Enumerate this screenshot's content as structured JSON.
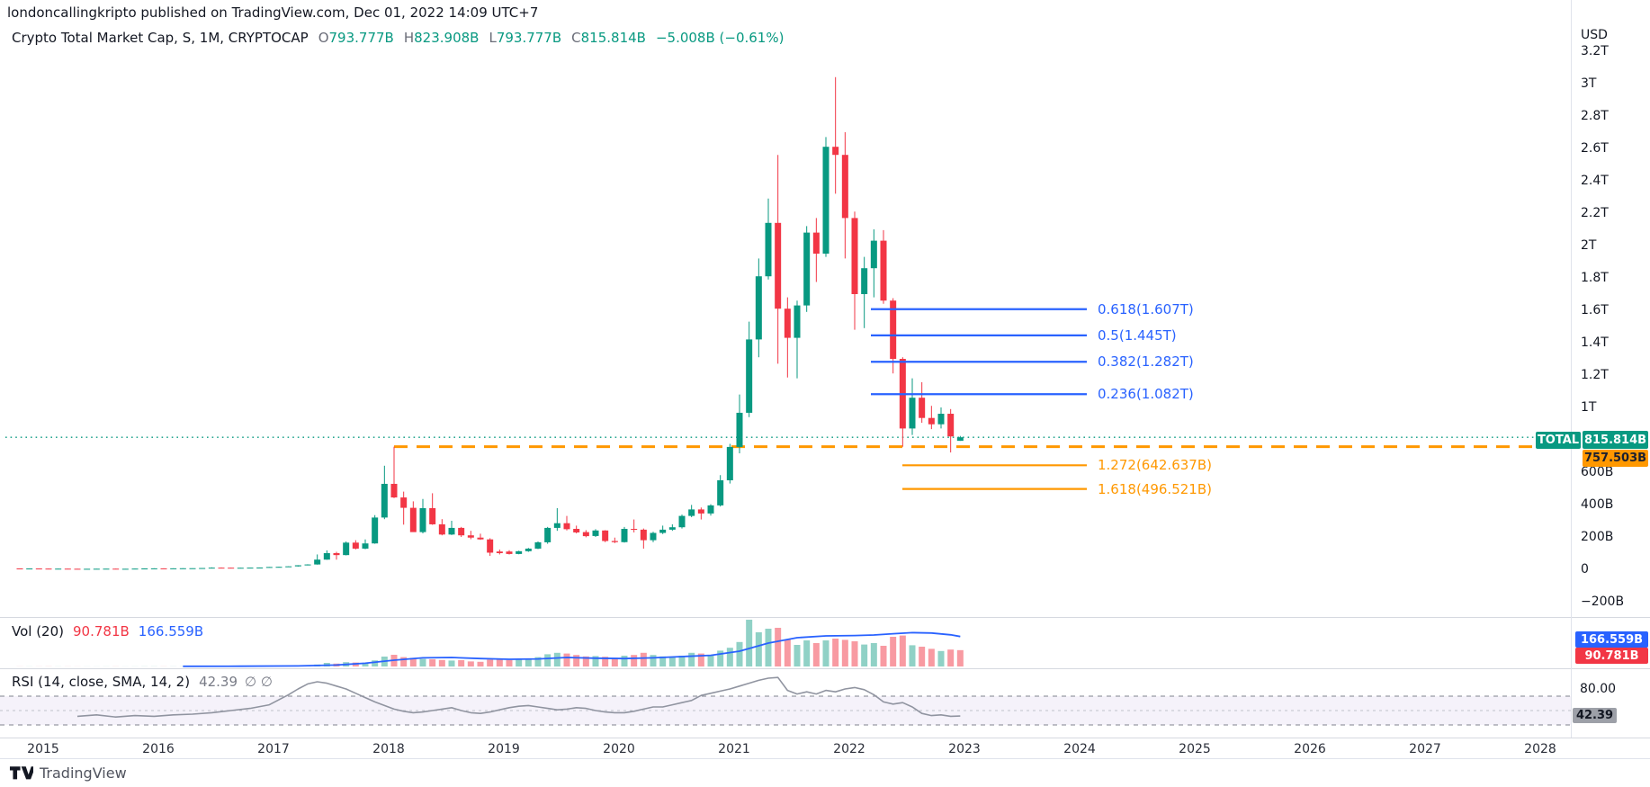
{
  "header": {
    "publish_line": "londoncallingkripto published on TradingView.com, Dec 01, 2022 14:09 UTC+7"
  },
  "legend": {
    "title": "Crypto Total Market Cap, S, 1M, CRYPTOCAP",
    "o_label": "O",
    "o": "793.777B",
    "h_label": "H",
    "h": "823.908B",
    "l_label": "L",
    "l": "793.777B",
    "c_label": "C",
    "c": "815.814B",
    "change": "−5.008B (−0.61%)"
  },
  "volume_row": {
    "label": "Vol (20)",
    "current": "90.781B",
    "ma": "166.559B"
  },
  "rsi_row": {
    "label": "RSI (14, close, SMA, 14, 2)",
    "value": "42.39",
    "hidden_values": "∅ ∅"
  },
  "footer": {
    "brand": "TradingView"
  },
  "axis": {
    "currency": "USD",
    "price_ticks": [
      {
        "label": "3.2T",
        "value": 3200
      },
      {
        "label": "3T",
        "value": 3000
      },
      {
        "label": "2.8T",
        "value": 2800
      },
      {
        "label": "2.6T",
        "value": 2600
      },
      {
        "label": "2.4T",
        "value": 2400
      },
      {
        "label": "2.2T",
        "value": 2200
      },
      {
        "label": "2T",
        "value": 2000
      },
      {
        "label": "1.8T",
        "value": 1800
      },
      {
        "label": "1.6T",
        "value": 1600
      },
      {
        "label": "1.4T",
        "value": 1400
      },
      {
        "label": "1.2T",
        "value": 1200
      },
      {
        "label": "1T",
        "value": 1000
      },
      {
        "label": "600B",
        "value": 600
      },
      {
        "label": "400B",
        "value": 400
      },
      {
        "label": "200B",
        "value": 200
      },
      {
        "label": "0",
        "value": 0
      },
      {
        "label": "−200B",
        "value": -200
      }
    ],
    "badge_total": "TOTAL",
    "badge_price": "815.814B",
    "badge_hline": "757.503B",
    "badge_vol_ma": "166.559B",
    "badge_vol": "90.781B",
    "badge_rsi": "42.39",
    "rsi_tick_label": "80.00",
    "years": [
      "2015",
      "2016",
      "2017",
      "2018",
      "2019",
      "2020",
      "2021",
      "2022",
      "2023",
      "2024",
      "2025",
      "2026",
      "2027",
      "2028"
    ]
  },
  "colors": {
    "up": "#089981",
    "down": "#f23645",
    "vol_up": "rgba(8,153,129,0.45)",
    "vol_down": "rgba(242,54,69,0.5)",
    "fib_blue": "#2962ff",
    "fib_orange": "#ff9800",
    "rsi_line": "#9094a0",
    "rsi_band": "rgba(126,87,194,0.08)",
    "ma_line": "#2962ff",
    "separator": "#d6d9e0"
  },
  "chart_data": {
    "type": "candlestick",
    "title": "Crypto Total Market Cap, S, 1M, CRYPTOCAP",
    "timeframe": "1M",
    "start_month": "2014-10",
    "units": "billions USD",
    "current_price": 815.814,
    "horizontal_line_value": 757.503,
    "price_axis_range": [
      -294,
      3361
    ],
    "grid": false,
    "months_ohlcv": [
      [
        5.6,
        5.8,
        4.8,
        5.0,
        0.4
      ],
      [
        5.0,
        5.6,
        4.4,
        5.3,
        0.4
      ],
      [
        5.3,
        5.5,
        4.2,
        4.6,
        0.4
      ],
      [
        4.6,
        4.7,
        2.9,
        3.9,
        0.6
      ],
      [
        3.9,
        4.4,
        3.3,
        4.3,
        0.4
      ],
      [
        4.3,
        4.4,
        3.4,
        3.6,
        0.4
      ],
      [
        3.6,
        3.7,
        3.1,
        3.3,
        0.3
      ],
      [
        3.3,
        3.5,
        3.2,
        3.4,
        0.3
      ],
      [
        3.4,
        3.9,
        3.3,
        3.8,
        0.3
      ],
      [
        3.8,
        4.4,
        3.7,
        4.1,
        0.4
      ],
      [
        4.1,
        4.2,
        2.9,
        3.4,
        0.5
      ],
      [
        3.4,
        3.6,
        3.2,
        3.5,
        0.3
      ],
      [
        3.5,
        4.7,
        3.4,
        4.6,
        0.4
      ],
      [
        4.6,
        5.9,
        4.5,
        5.5,
        0.6
      ],
      [
        5.5,
        6.5,
        5.3,
        6.1,
        0.6
      ],
      [
        6.1,
        6.3,
        5.2,
        5.6,
        0.5
      ],
      [
        5.6,
        6.4,
        5.4,
        6.3,
        0.5
      ],
      [
        6.3,
        7.1,
        5.9,
        6.7,
        0.6
      ],
      [
        6.7,
        7.2,
        6.3,
        7.0,
        0.6
      ],
      [
        7.0,
        8.2,
        6.8,
        8.1,
        0.7
      ],
      [
        8.1,
        12.2,
        7.9,
        10.3,
        1.4
      ],
      [
        10.3,
        12.1,
        9.4,
        10.1,
        1.2
      ],
      [
        10.1,
        10.6,
        8.9,
        9.2,
        0.9
      ],
      [
        9.2,
        9.9,
        8.9,
        9.7,
        0.8
      ],
      [
        9.7,
        10.6,
        9.4,
        10.5,
        0.8
      ],
      [
        10.5,
        11.4,
        9.9,
        11.2,
        0.9
      ],
      [
        11.2,
        14.6,
        10.9,
        14.5,
        1.2
      ],
      [
        14.5,
        15.8,
        11.8,
        15.5,
        2
      ],
      [
        15.5,
        18.6,
        14.9,
        18.5,
        2
      ],
      [
        18.5,
        25.6,
        17.3,
        25,
        3.2
      ],
      [
        25,
        31,
        24,
        30,
        4
      ],
      [
        30,
        92,
        29,
        60,
        11
      ],
      [
        60,
        117,
        59,
        100,
        20
      ],
      [
        100,
        108,
        60,
        88,
        16
      ],
      [
        88,
        172,
        86,
        165,
        24
      ],
      [
        165,
        180,
        123,
        128,
        22
      ],
      [
        128,
        185,
        124,
        160,
        20
      ],
      [
        160,
        335,
        158,
        320,
        34
      ],
      [
        320,
        640,
        310,
        528,
        55
      ],
      [
        528,
        757.5,
        440,
        444,
        65
      ],
      [
        444,
        480,
        276,
        380,
        52
      ],
      [
        380,
        420,
        248,
        230,
        48
      ],
      [
        230,
        435,
        222,
        378,
        42
      ],
      [
        378,
        470,
        275,
        278,
        40
      ],
      [
        278,
        310,
        210,
        215,
        36
      ],
      [
        215,
        300,
        212,
        256,
        33
      ],
      [
        256,
        262,
        200,
        210,
        35
      ],
      [
        210,
        238,
        186,
        196,
        28
      ],
      [
        196,
        220,
        182,
        185,
        26
      ],
      [
        185,
        192,
        83,
        103,
        38
      ],
      [
        110,
        122,
        92,
        100,
        40
      ],
      [
        110,
        118,
        92,
        95,
        36
      ],
      [
        95,
        115,
        93,
        112,
        38
      ],
      [
        112,
        132,
        108,
        128,
        44
      ],
      [
        128,
        172,
        125,
        167,
        52
      ],
      [
        167,
        262,
        158,
        256,
        68
      ],
      [
        256,
        378,
        238,
        285,
        76
      ],
      [
        285,
        330,
        240,
        248,
        72
      ],
      [
        250,
        270,
        222,
        228,
        64
      ],
      [
        230,
        242,
        198,
        205,
        56
      ],
      [
        206,
        248,
        200,
        240,
        58
      ],
      [
        240,
        242,
        168,
        175,
        54
      ],
      [
        175,
        196,
        162,
        168,
        48
      ],
      [
        168,
        262,
        165,
        250,
        60
      ],
      [
        250,
        308,
        228,
        245,
        64
      ],
      [
        245,
        252,
        128,
        180,
        76
      ],
      [
        180,
        232,
        168,
        225,
        64
      ],
      [
        225,
        270,
        218,
        245,
        56
      ],
      [
        245,
        278,
        238,
        260,
        52
      ],
      [
        260,
        338,
        252,
        330,
        60
      ],
      [
        330,
        398,
        322,
        370,
        76
      ],
      [
        370,
        382,
        308,
        345,
        72
      ],
      [
        345,
        402,
        332,
        395,
        64
      ],
      [
        395,
        582,
        388,
        550,
        88
      ],
      [
        550,
        775,
        530,
        756,
        104
      ],
      [
        756,
        1080,
        717,
        967,
        136
      ],
      [
        967,
        1530,
        940,
        1420,
        260
      ],
      [
        1420,
        1920,
        1310,
        1810,
        190
      ],
      [
        1810,
        2290,
        1790,
        2140,
        210
      ],
      [
        2140,
        2560,
        1270,
        1610,
        215
      ],
      [
        1610,
        1680,
        1185,
        1430,
        150
      ],
      [
        1430,
        1660,
        1180,
        1630,
        120
      ],
      [
        1630,
        2120,
        1590,
        2080,
        145
      ],
      [
        2080,
        2170,
        1775,
        1950,
        130
      ],
      [
        1950,
        2670,
        1930,
        2610,
        145
      ],
      [
        2610,
        3040,
        2320,
        2560,
        155
      ],
      [
        2560,
        2700,
        1920,
        2170,
        148
      ],
      [
        2170,
        2210,
        1480,
        1700,
        140
      ],
      [
        1700,
        1930,
        1490,
        1860,
        122
      ],
      [
        1860,
        2100,
        1680,
        2030,
        130
      ],
      [
        2030,
        2095,
        1640,
        1660,
        115
      ],
      [
        1660,
        1675,
        1210,
        1300,
        165
      ],
      [
        1300,
        1310,
        757,
        870,
        172
      ],
      [
        870,
        1180,
        830,
        1060,
        118
      ],
      [
        1060,
        1156,
        905,
        935,
        110
      ],
      [
        935,
        1010,
        866,
        896,
        98
      ],
      [
        896,
        1000,
        870,
        961,
        86
      ],
      [
        961,
        990,
        722,
        821,
        94
      ],
      [
        793.777,
        823.908,
        793.777,
        815.814,
        90.781
      ]
    ],
    "vol_ma20": [
      [
        14,
        1
      ],
      [
        20,
        1.5
      ],
      [
        26,
        3
      ],
      [
        30,
        8
      ],
      [
        33,
        18
      ],
      [
        36,
        35
      ],
      [
        39,
        48
      ],
      [
        42,
        50
      ],
      [
        45,
        44
      ],
      [
        48,
        40
      ],
      [
        51,
        42
      ],
      [
        54,
        50
      ],
      [
        57,
        46
      ],
      [
        60,
        44
      ],
      [
        63,
        48
      ],
      [
        66,
        55
      ],
      [
        69,
        62
      ],
      [
        72,
        85
      ],
      [
        75,
        130
      ],
      [
        78,
        160
      ],
      [
        81,
        170
      ],
      [
        84,
        172
      ],
      [
        86,
        175
      ],
      [
        88,
        182
      ],
      [
        90,
        188
      ],
      [
        92,
        186
      ],
      [
        94,
        176
      ],
      [
        95,
        166.559
      ]
    ],
    "rsi_values": [
      [
        3,
        42
      ],
      [
        5,
        44
      ],
      [
        7,
        41
      ],
      [
        9,
        43
      ],
      [
        11,
        42
      ],
      [
        13,
        44
      ],
      [
        15,
        45
      ],
      [
        17,
        47
      ],
      [
        19,
        50
      ],
      [
        21,
        53
      ],
      [
        23,
        58
      ],
      [
        25,
        72
      ],
      [
        26,
        80
      ],
      [
        27,
        87
      ],
      [
        28,
        90
      ],
      [
        29,
        88
      ],
      [
        30,
        84
      ],
      [
        31,
        80
      ],
      [
        32,
        74
      ],
      [
        33,
        68
      ],
      [
        34,
        62
      ],
      [
        35,
        57
      ],
      [
        36,
        52
      ],
      [
        37,
        49
      ],
      [
        38,
        47
      ],
      [
        39,
        48
      ],
      [
        40,
        50
      ],
      [
        41,
        52
      ],
      [
        42,
        54
      ],
      [
        43,
        50
      ],
      [
        44,
        47
      ],
      [
        45,
        46
      ],
      [
        46,
        48
      ],
      [
        47,
        51
      ],
      [
        48,
        54
      ],
      [
        49,
        56
      ],
      [
        50,
        57
      ],
      [
        51,
        55
      ],
      [
        52,
        53
      ],
      [
        53,
        51
      ],
      [
        54,
        52
      ],
      [
        55,
        54
      ],
      [
        56,
        53
      ],
      [
        57,
        50
      ],
      [
        58,
        48
      ],
      [
        59,
        47
      ],
      [
        60,
        47
      ],
      [
        61,
        49
      ],
      [
        62,
        52
      ],
      [
        63,
        55
      ],
      [
        64,
        55
      ],
      [
        65,
        58
      ],
      [
        66,
        61
      ],
      [
        67,
        64
      ],
      [
        68,
        71
      ],
      [
        69,
        74
      ],
      [
        70,
        77
      ],
      [
        71,
        80
      ],
      [
        72,
        84
      ],
      [
        73,
        88
      ],
      [
        74,
        92
      ],
      [
        75,
        95
      ],
      [
        76,
        96
      ],
      [
        77,
        78
      ],
      [
        78,
        73
      ],
      [
        79,
        76
      ],
      [
        80,
        73
      ],
      [
        81,
        78
      ],
      [
        82,
        76
      ],
      [
        83,
        80
      ],
      [
        84,
        82
      ],
      [
        85,
        79
      ],
      [
        86,
        72
      ],
      [
        87,
        62
      ],
      [
        88,
        59
      ],
      [
        89,
        61
      ],
      [
        90,
        55
      ],
      [
        91,
        46
      ],
      [
        92,
        43
      ],
      [
        93,
        44
      ],
      [
        94,
        42
      ],
      [
        95,
        42.39
      ]
    ],
    "rsi_levels": [
      70,
      50,
      30
    ],
    "fib_blue": [
      {
        "label": "0.618(1.607T)",
        "value": 1607
      },
      {
        "label": "0.5(1.445T)",
        "value": 1445
      },
      {
        "label": "0.382(1.282T)",
        "value": 1282
      },
      {
        "label": "0.236(1.082T)",
        "value": 1082
      }
    ],
    "fib_orange": [
      {
        "label": "1.272(642.637B)",
        "value": 642.637
      },
      {
        "label": "1.618(496.521B)",
        "value": 496.521
      }
    ]
  }
}
